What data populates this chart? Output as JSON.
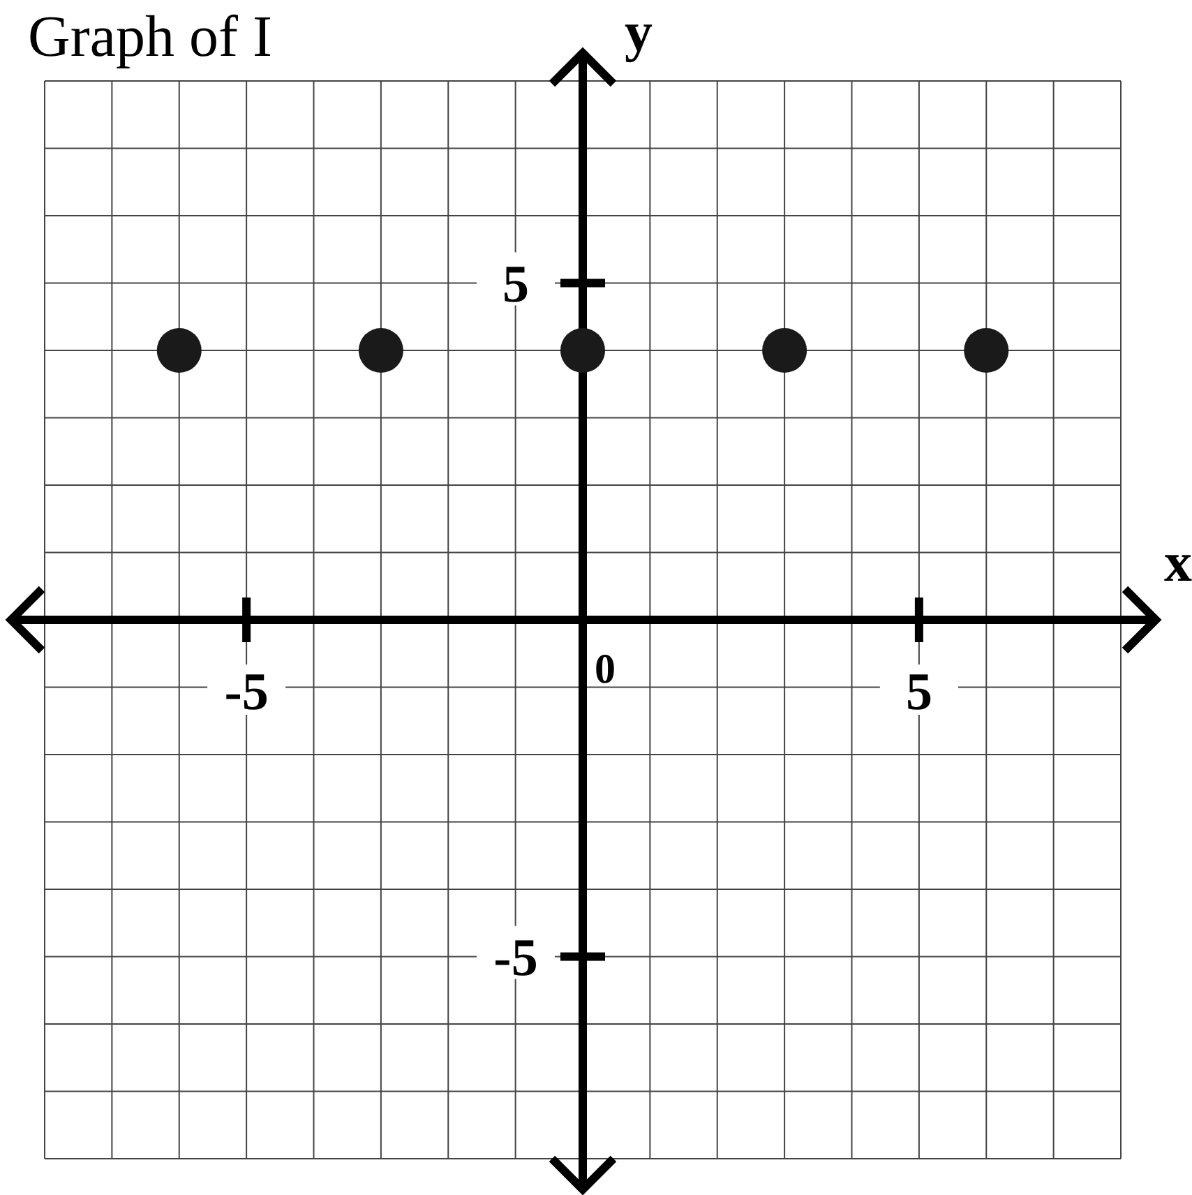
{
  "chart_data": {
    "type": "scatter",
    "title": "Graph of I",
    "xlabel": "x",
    "ylabel": "y",
    "x": [
      -6,
      -3,
      0,
      3,
      6
    ],
    "values": [
      4,
      4,
      4,
      4,
      4
    ],
    "annotations": [
      "0"
    ],
    "color": "#1a1a1a",
    "marker": "circle",
    "grid": true,
    "xlim": [
      -8,
      8
    ],
    "ylim": [
      -8,
      8
    ],
    "xticks": [
      {
        "value": -8,
        "label": null
      },
      {
        "value": -7,
        "label": null
      },
      {
        "value": -6,
        "label": null
      },
      -5,
      {
        "value": -4,
        "label": null
      },
      {
        "value": -3,
        "label": null
      },
      {
        "value": -2,
        "label": null
      },
      {
        "value": -1,
        "label": null
      },
      {
        "value": 0,
        "label": null
      },
      {
        "value": 1,
        "label": null
      },
      {
        "value": 2,
        "label": null
      },
      {
        "value": 3,
        "label": null
      },
      {
        "value": 4,
        "label": null
      },
      5,
      {
        "value": 6,
        "label": null
      },
      {
        "value": 7,
        "label": null
      },
      {
        "value": 8,
        "label": null
      }
    ],
    "yticks": [
      {
        "value": -8,
        "label": null
      },
      {
        "value": -7,
        "label": null
      },
      {
        "value": -6,
        "label": null
      },
      -5,
      {
        "value": -4,
        "label": null
      },
      {
        "value": -3,
        "label": null
      },
      {
        "value": -2,
        "label": null
      },
      {
        "value": -1,
        "label": null
      },
      {
        "value": 0,
        "label": null
      },
      {
        "value": 1,
        "label": null
      },
      {
        "value": 2,
        "label": null
      },
      {
        "value": 3,
        "label": null
      },
      {
        "value": 4,
        "label": null
      },
      5,
      {
        "value": 6,
        "label": null
      },
      {
        "value": 7,
        "label": null
      },
      {
        "value": 8,
        "label": null
      }
    ]
  }
}
